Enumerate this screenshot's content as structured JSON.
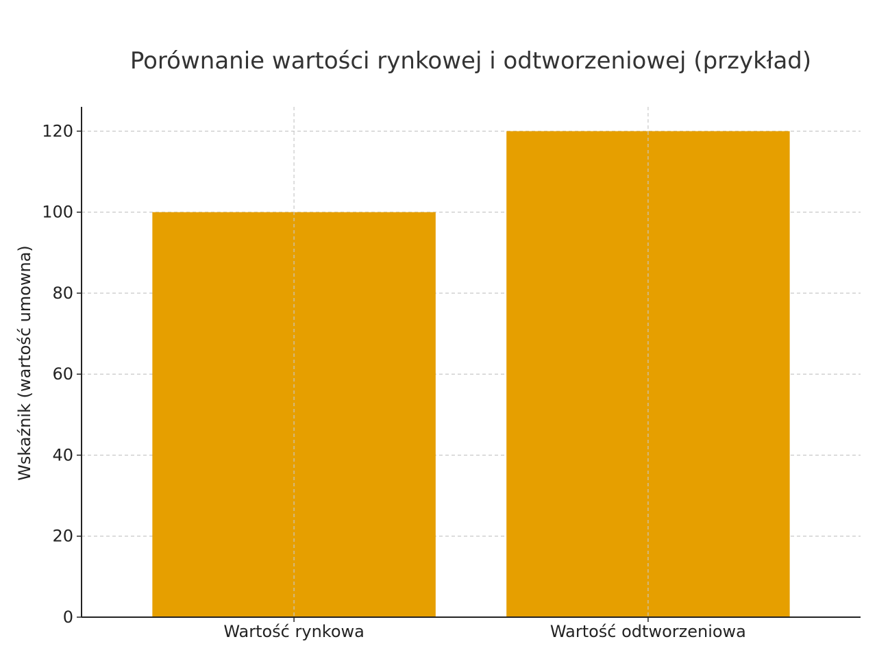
{
  "chart_data": {
    "type": "bar",
    "title": "Porównanie wartości rynkowej i odtworzeniowej (przykład)",
    "xlabel": "",
    "ylabel": "Wskaźnik (wartość umowna)",
    "categories": [
      "Wartość rynkowa",
      "Wartość odtworzeniowa"
    ],
    "values": [
      100,
      120
    ],
    "ylim": [
      0,
      126
    ],
    "yticks": [
      0,
      20,
      40,
      60,
      80,
      100,
      120
    ],
    "grid": true,
    "bar_color": "#E69F00"
  }
}
